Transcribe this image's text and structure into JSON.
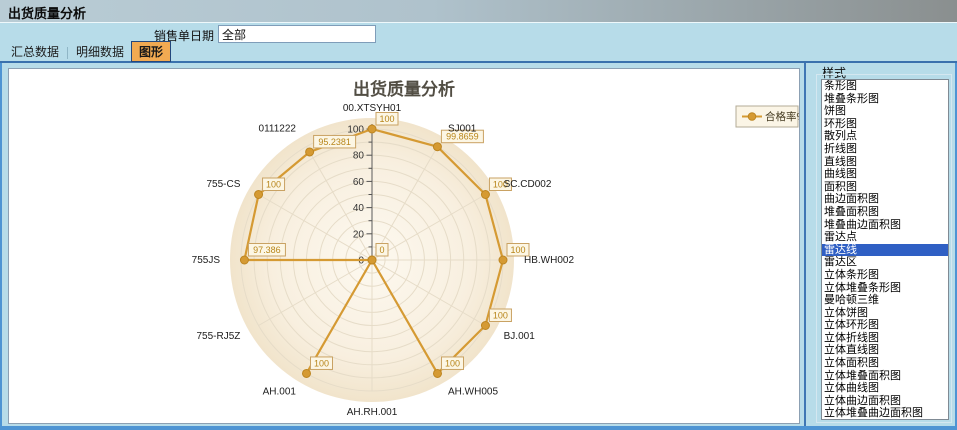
{
  "window": {
    "title": "出货质量分析"
  },
  "filter": {
    "label": "销售单日期",
    "value": "全部"
  },
  "tabs": [
    {
      "label": "汇总数据",
      "selected": false
    },
    {
      "label": "明细数据",
      "selected": false
    },
    {
      "label": "图形",
      "selected": true
    }
  ],
  "style_panel": {
    "title": "样式",
    "selected": "雷达线",
    "items": [
      "条形图",
      "堆叠条形图",
      "饼图",
      "环形图",
      "散列点",
      "折线图",
      "直线图",
      "曲线图",
      "面积图",
      "曲边面积图",
      "堆叠面积图",
      "堆叠曲边面积图",
      "雷达点",
      "雷达线",
      "雷达区",
      "立体条形图",
      "立体堆叠条形图",
      "曼哈顿三维",
      "立体饼图",
      "立体环形图",
      "立体折线图",
      "立体直线图",
      "立体面积图",
      "立体堆叠面积图",
      "立体曲线图",
      "立体曲边面积图",
      "立体堆叠曲边面积图"
    ]
  },
  "chart_data": {
    "type": "radar",
    "title": "出货质量分析",
    "categories": [
      "00.XTSYH01",
      "SJ001",
      "SC.CD002",
      "HB.WH002",
      "BJ.001",
      "AH.WH005",
      "AH.RH.001",
      "AH.001",
      "755-RJ5Z",
      "755JS",
      "755-CS",
      "0111222"
    ],
    "series": [
      {
        "name": "合格率%",
        "color": "#d59a33",
        "values": [
          100,
          99.8659,
          100,
          100,
          100,
          100,
          0,
          100,
          0,
          97.386,
          100,
          95.2381
        ]
      }
    ],
    "point_labels": [
      "100",
      "99.8659",
      "100",
      "100",
      "100",
      "100",
      "0",
      "100",
      "0",
      "97.386",
      "100",
      "95.2381"
    ],
    "axis": {
      "min": 0,
      "max": 100,
      "major_step": 20,
      "minor_step": 10
    },
    "grid": true,
    "legend_position": "top-right"
  },
  "colors": {
    "accent_orange": "#d59a33",
    "dot_edge": "#bd8520",
    "value_box_bg": "#fcf6e4",
    "value_box_border": "#c9a263",
    "value_text": "#b8861b",
    "plot_cream": "#f8efdf",
    "grid_line": "#e6dcc8",
    "selected_tab_bg": "#f1aa52",
    "selection_blue": "#2f5fc4"
  }
}
